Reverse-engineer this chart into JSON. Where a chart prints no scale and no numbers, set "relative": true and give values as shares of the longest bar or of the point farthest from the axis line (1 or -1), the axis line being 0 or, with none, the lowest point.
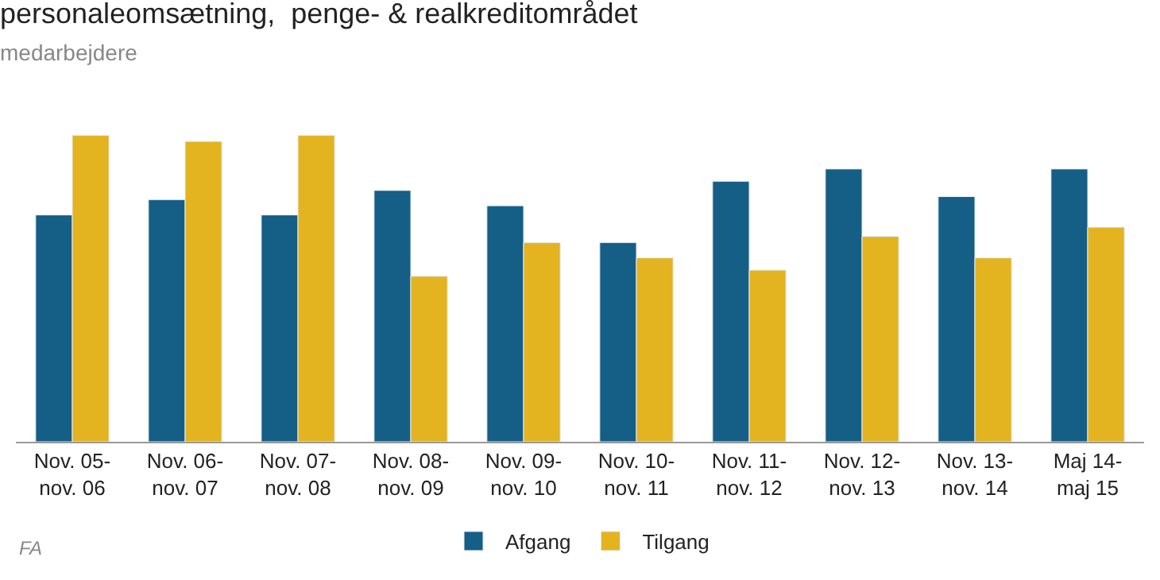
{
  "chart_data": {
    "type": "bar",
    "title": "personaleomsætning,  penge- & realkreditområdet",
    "subtitle": "medarbejdere",
    "categories": [
      "Nov. 05-\nnov. 06",
      "Nov. 06-\nnov. 07",
      "Nov. 07-\nnov. 08",
      "Nov. 08-\nnov. 09",
      "Nov. 09-\nnov. 10",
      "Nov. 10-\nnov. 11",
      "Nov. 11-\nnov. 12",
      "Nov. 12-\nnov. 13",
      "Nov. 13-\nnov. 14",
      "Maj 14-\nmaj 15"
    ],
    "series": [
      {
        "name": "Afgang",
        "color": "#155e85",
        "values": [
          0.74,
          0.79,
          0.74,
          0.82,
          0.77,
          0.65,
          0.85,
          0.89,
          0.8,
          0.89
        ]
      },
      {
        "name": "Tilgang",
        "color": "#e3b320",
        "values": [
          1,
          0.98,
          1,
          0.54,
          0.65,
          0.6,
          0.56,
          0.67,
          0.6,
          0.7
        ]
      }
    ],
    "relative": true,
    "legend": "bottom",
    "annotations": [
      "FA"
    ]
  }
}
